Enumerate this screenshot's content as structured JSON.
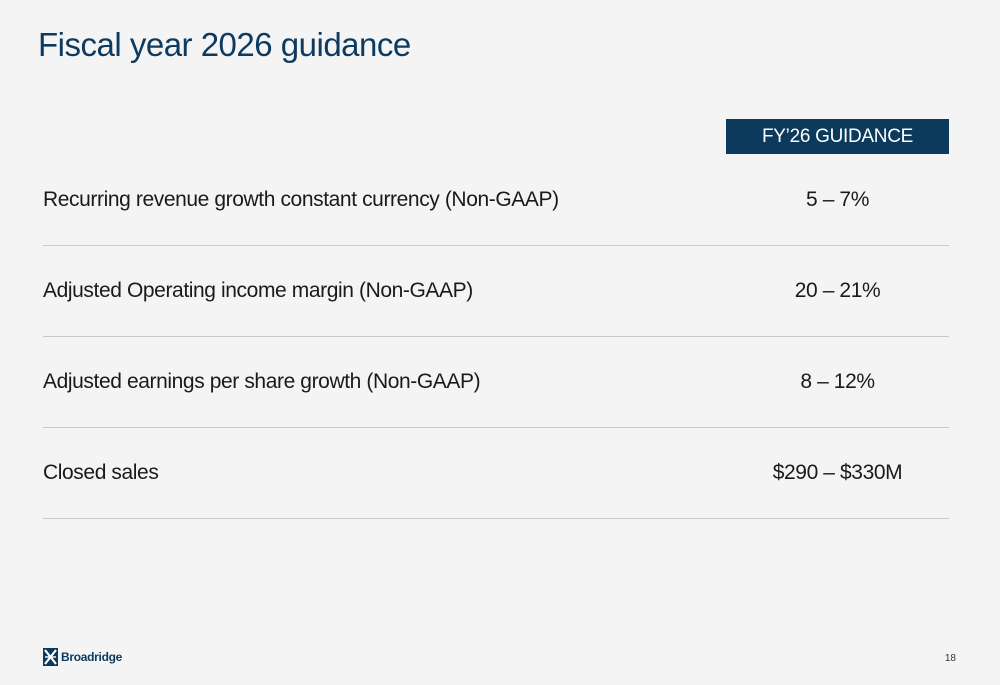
{
  "slide": {
    "title": "Fiscal year 2026 guidance",
    "column_header": "FY’26 GUIDANCE",
    "rows": [
      {
        "label": "Recurring revenue growth constant currency (Non-GAAP)",
        "value": "5 – 7%"
      },
      {
        "label": "Adjusted Operating income margin (Non-GAAP)",
        "value": "20 – 21%"
      },
      {
        "label": "Adjusted earnings per share growth (Non-GAAP)",
        "value": "8 – 12%"
      },
      {
        "label": "Closed sales",
        "value": "$290 – $330M"
      }
    ]
  },
  "footer": {
    "logo_text": "Broadridge",
    "page_number": "18"
  },
  "colors": {
    "brand_navy": "#0b3a5c",
    "background": "#f4f4f4",
    "divider": "#c9c9c9"
  }
}
